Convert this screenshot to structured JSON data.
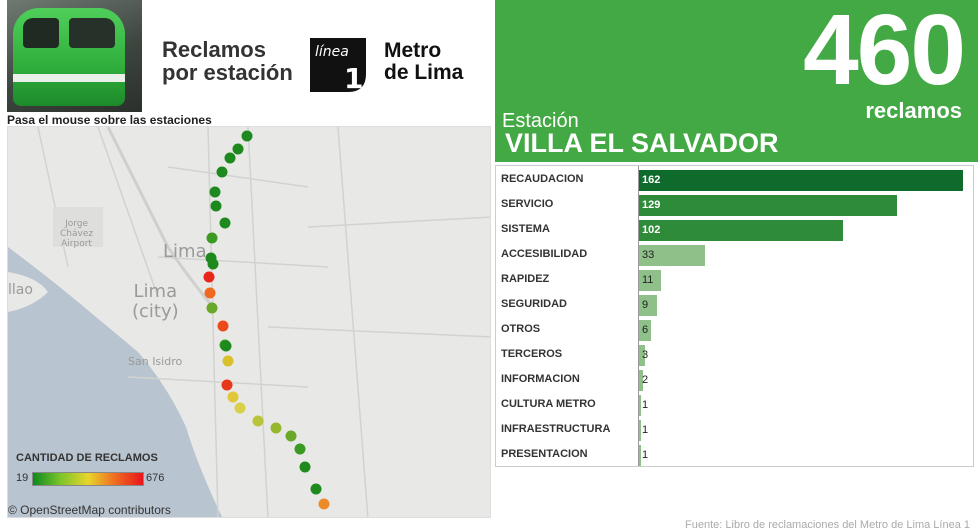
{
  "header": {
    "title_line1": "Reclamos",
    "title_line2": "por estación",
    "logo_mark_word": "línea",
    "logo_mark_number": "1",
    "logo_text_line1": "Metro",
    "logo_text_line2": "de Lima"
  },
  "map": {
    "hint": "Pasa el mouse sobre las estaciones",
    "labels": {
      "airport_line1": "Jorge",
      "airport_line2": "Chávez",
      "airport_line3": "Airport",
      "lima": "Lima",
      "lima_city_line1": "Lima",
      "lima_city_line2": "(city)",
      "callao_partial": "llao",
      "san_isidro": "San Isidro"
    },
    "legend": {
      "title": "CANTIDAD DE RECLAMOS",
      "min": "19",
      "max": "676"
    },
    "attribution": "© OpenStreetMap contributors"
  },
  "kpi": {
    "value": "460",
    "unit": "reclamos",
    "station_label": "Estación",
    "station_name": "VILLA EL SALVADOR",
    "panel_color": "#43a944"
  },
  "chart_data": {
    "type": "bar",
    "orientation": "horizontal",
    "categories": [
      "RECAUDACION",
      "SERVICIO",
      "SISTEMA",
      "ACCESIBILIDAD",
      "RAPIDEZ",
      "SEGURIDAD",
      "OTROS",
      "TERCEROS",
      "INFORMACION",
      "CULTURA METRO",
      "INFRAESTRUCTURA",
      "PRESENTACION"
    ],
    "values": [
      162,
      129,
      102,
      33,
      11,
      9,
      6,
      3,
      2,
      1,
      1,
      1
    ],
    "xlim": [
      0,
      165
    ],
    "colors": {
      "dark": "#0f6b2c",
      "medium": "#2e8b3a",
      "light": "#8fc08a"
    }
  },
  "source": "Fuente: Libro de reclamaciones del Metro de Lima Línea 1"
}
